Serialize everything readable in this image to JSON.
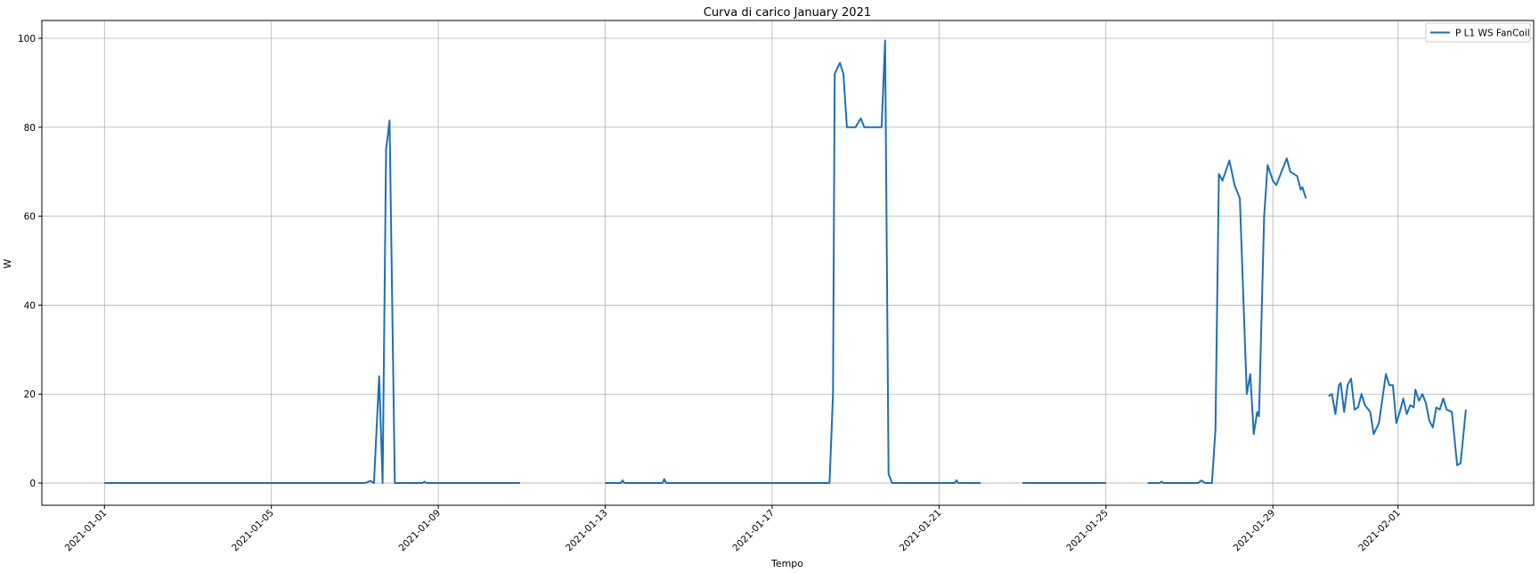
{
  "chart_data": {
    "type": "line",
    "title": "Curva di carico January 2021",
    "xlabel": "Tempo",
    "ylabel": "W",
    "x_type": "date",
    "xlim": [
      "2020-12-30T12:00",
      "2021-02-04T06:00"
    ],
    "ylim": [
      -5,
      104
    ],
    "grid": true,
    "legend_position": "top-right",
    "x_ticks": [
      "2021-01-01",
      "2021-01-05",
      "2021-01-09",
      "2021-01-13",
      "2021-01-17",
      "2021-01-21",
      "2021-01-25",
      "2021-01-29",
      "2021-02-01"
    ],
    "y_ticks": [
      0,
      20,
      40,
      60,
      80,
      100
    ],
    "colors": {
      "series": "#1f6fb4",
      "grid": "#b0b0b0"
    },
    "series": [
      {
        "name": "P L1 WS FanCoil",
        "segments": [
          [
            [
              "2021-01-01T00:00",
              0
            ],
            [
              "2021-01-07T06:00",
              0
            ],
            [
              "2021-01-07T09:00",
              0.5
            ],
            [
              "2021-01-07T11:00",
              0
            ],
            [
              "2021-01-07T14:00",
              24
            ],
            [
              "2021-01-07T16:00",
              0
            ],
            [
              "2021-01-07T18:00",
              75
            ],
            [
              "2021-01-07T20:00",
              81.5
            ],
            [
              "2021-01-07T23:00",
              0
            ],
            [
              "2021-01-08T15:00",
              0
            ],
            [
              "2021-01-08T16:00",
              0.3
            ],
            [
              "2021-01-08T17:00",
              0
            ],
            [
              "2021-01-10T23:00",
              0
            ]
          ],
          [
            [
              "2021-01-13T00:00",
              0
            ],
            [
              "2021-01-13T09:00",
              0
            ],
            [
              "2021-01-13T10:00",
              0.6
            ],
            [
              "2021-01-13T11:00",
              0
            ],
            [
              "2021-01-14T09:00",
              0
            ],
            [
              "2021-01-14T10:00",
              0.9
            ],
            [
              "2021-01-14T11:00",
              0
            ],
            [
              "2021-01-18T09:00",
              0
            ],
            [
              "2021-01-18T11:00",
              20
            ],
            [
              "2021-01-18T12:00",
              92
            ],
            [
              "2021-01-18T15:00",
              94.5
            ],
            [
              "2021-01-18T17:00",
              92
            ],
            [
              "2021-01-18T19:00",
              80
            ],
            [
              "2021-01-19T00:00",
              80
            ],
            [
              "2021-01-19T03:00",
              82
            ],
            [
              "2021-01-19T05:00",
              80
            ],
            [
              "2021-01-19T15:00",
              80
            ],
            [
              "2021-01-19T17:00",
              99.5
            ],
            [
              "2021-01-19T19:00",
              2
            ],
            [
              "2021-01-19T21:00",
              0
            ],
            [
              "2021-01-21T09:00",
              0
            ],
            [
              "2021-01-21T10:00",
              0.6
            ],
            [
              "2021-01-21T11:00",
              0
            ],
            [
              "2021-01-22T00:00",
              0
            ]
          ],
          [
            [
              "2021-01-23T00:00",
              0
            ],
            [
              "2021-01-25T00:00",
              0
            ]
          ],
          [
            [
              "2021-01-26T00:00",
              0
            ],
            [
              "2021-01-26T07:00",
              0
            ],
            [
              "2021-01-26T08:00",
              0.3
            ],
            [
              "2021-01-26T09:00",
              0
            ],
            [
              "2021-01-27T05:00",
              0
            ],
            [
              "2021-01-27T07:00",
              0.6
            ],
            [
              "2021-01-27T09:00",
              0
            ],
            [
              "2021-01-27T13:00",
              0
            ],
            [
              "2021-01-27T15:00",
              12
            ],
            [
              "2021-01-27T17:00",
              69.5
            ],
            [
              "2021-01-27T19:00",
              68
            ],
            [
              "2021-01-27T23:00",
              72.5
            ],
            [
              "2021-01-28T02:00",
              67
            ],
            [
              "2021-01-28T05:00",
              64
            ],
            [
              "2021-01-28T09:00",
              20
            ],
            [
              "2021-01-28T11:00",
              24.5
            ],
            [
              "2021-01-28T13:00",
              11
            ],
            [
              "2021-01-28T15:00",
              16
            ],
            [
              "2021-01-28T16:00",
              15
            ],
            [
              "2021-01-28T19:00",
              60
            ],
            [
              "2021-01-28T21:00",
              71.5
            ],
            [
              "2021-01-29T00:00",
              68
            ],
            [
              "2021-01-29T02:00",
              67
            ],
            [
              "2021-01-29T05:00",
              70
            ],
            [
              "2021-01-29T08:00",
              73
            ],
            [
              "2021-01-29T10:00",
              70
            ],
            [
              "2021-01-29T14:00",
              69
            ],
            [
              "2021-01-29T16:00",
              66
            ],
            [
              "2021-01-29T17:00",
              66.5
            ],
            [
              "2021-01-29T19:00",
              64
            ]
          ],
          [
            [
              "2021-01-30T08:00",
              19.5
            ],
            [
              "2021-01-30T10:00",
              20
            ],
            [
              "2021-01-30T12:00",
              15.5
            ],
            [
              "2021-01-30T14:00",
              22
            ],
            [
              "2021-01-30T15:00",
              22.5
            ],
            [
              "2021-01-30T17:00",
              16
            ],
            [
              "2021-01-30T19:00",
              22
            ],
            [
              "2021-01-30T21:00",
              23.5
            ],
            [
              "2021-01-30T23:00",
              16.5
            ],
            [
              "2021-01-31T01:00",
              17
            ],
            [
              "2021-01-31T03:00",
              20
            ],
            [
              "2021-01-31T05:00",
              17.5
            ],
            [
              "2021-01-31T08:00",
              16
            ],
            [
              "2021-01-31T10:00",
              11
            ],
            [
              "2021-01-31T13:00",
              13.5
            ],
            [
              "2021-01-31T15:00",
              19
            ],
            [
              "2021-01-31T17:00",
              24.5
            ],
            [
              "2021-01-31T19:00",
              22
            ],
            [
              "2021-01-31T21:00",
              22
            ],
            [
              "2021-01-31T23:00",
              13.5
            ],
            [
              "2021-02-01T01:00",
              16
            ],
            [
              "2021-02-01T03:00",
              19
            ],
            [
              "2021-02-01T05:00",
              15.5
            ],
            [
              "2021-02-01T07:00",
              17.5
            ],
            [
              "2021-02-01T09:00",
              17
            ],
            [
              "2021-02-01T10:00",
              21
            ],
            [
              "2021-02-01T12:00",
              18.5
            ],
            [
              "2021-02-01T14:00",
              20
            ],
            [
              "2021-02-01T16:00",
              18
            ],
            [
              "2021-02-01T18:00",
              14
            ],
            [
              "2021-02-01T20:00",
              12.5
            ],
            [
              "2021-02-01T22:00",
              17
            ],
            [
              "2021-02-02T00:00",
              16.5
            ],
            [
              "2021-02-02T02:00",
              19
            ],
            [
              "2021-02-02T04:00",
              16.5
            ],
            [
              "2021-02-02T07:00",
              16
            ],
            [
              "2021-02-02T10:00",
              4
            ],
            [
              "2021-02-02T12:00",
              4.5
            ],
            [
              "2021-02-02T15:00",
              16.5
            ]
          ]
        ]
      }
    ]
  }
}
